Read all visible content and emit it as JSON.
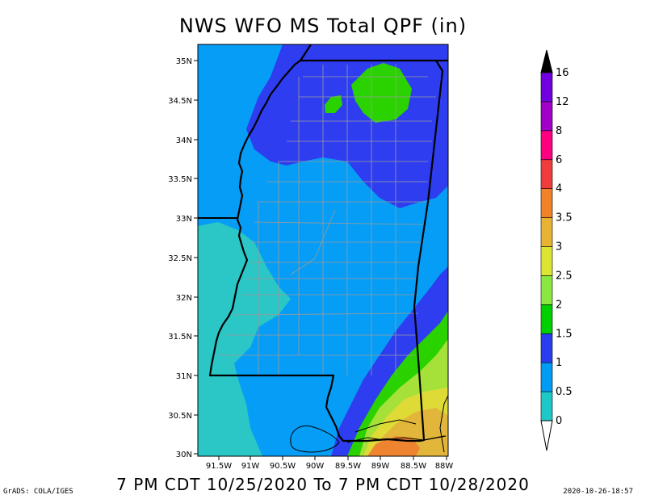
{
  "title": "NWS WFO MS Total QPF (in)",
  "subtitle": "7 PM CDT 10/25/2020 To 7 PM CDT 10/28/2020",
  "credit": "GrADS: COLA/IGES",
  "timestamp": "2020-10-26-18:57",
  "lat_labels": [
    "35N",
    "34.5N",
    "34N",
    "33.5N",
    "33N",
    "32.5N",
    "32N",
    "31.5N",
    "31N",
    "30.5N",
    "30N"
  ],
  "lon_labels": [
    "91.5W",
    "91W",
    "90.5W",
    "90W",
    "89.5W",
    "89W",
    "88.5W",
    "88W"
  ],
  "legend": {
    "labels": [
      "0",
      "0.5",
      "1",
      "1.5",
      "2",
      "2.5",
      "3",
      "3.5",
      "4",
      "6",
      "8",
      "12",
      "16"
    ],
    "colors": [
      "#1ec8c8",
      "#009bf5",
      "#2a3cf0",
      "#00d000",
      "#8ce640",
      "#dce632",
      "#e6b432",
      "#f08228",
      "#f03c3c",
      "#ff0080",
      "#a000c8",
      "#7000e0"
    ]
  },
  "map_colors": {
    "cyan": "#2bc6c6",
    "lightblue": "#069df6",
    "blue": "#2e3df0",
    "green": "#2ad300",
    "yellowgreen": "#a6e13a",
    "yellow": "#dfdb36",
    "gold": "#e2b63a",
    "orange": "#ee8430"
  }
}
